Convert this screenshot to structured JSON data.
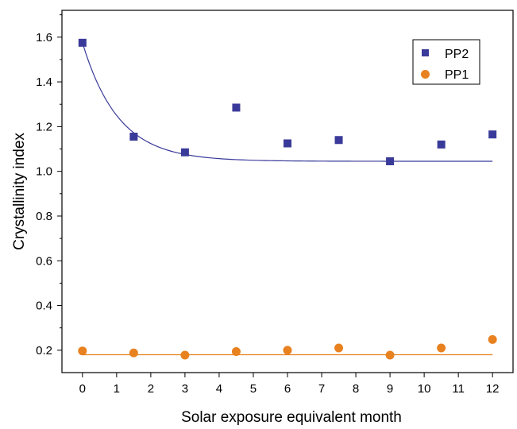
{
  "chart_data": {
    "type": "scatter",
    "title": "",
    "xlabel": "Solar exposure equivalent month",
    "ylabel": "Crystallinity index",
    "xlim": [
      -0.6,
      12.6
    ],
    "ylim": [
      0.1,
      1.72
    ],
    "xticks": [
      0,
      1,
      2,
      3,
      4,
      5,
      6,
      7,
      8,
      9,
      10,
      11,
      12
    ],
    "yticks": [
      0.2,
      0.4,
      0.6,
      0.8,
      1.0,
      1.2,
      1.4,
      1.6
    ],
    "ytick_labels": [
      "0.2",
      "0.4",
      "0.6",
      "0.8",
      "1.0",
      "1.2",
      "1.4",
      "1.6"
    ],
    "grid": false,
    "legend_position": "top-right",
    "series": [
      {
        "name": "PP2",
        "marker": "square",
        "color": "#3a3a9a",
        "x": [
          0,
          1.5,
          3,
          4.5,
          6,
          7.5,
          9,
          10.5,
          12
        ],
        "y": [
          1.575,
          1.155,
          1.085,
          1.285,
          1.125,
          1.14,
          1.045,
          1.12,
          1.165
        ],
        "fit": {
          "type": "exponential-decay",
          "color": "#3a3a9a",
          "start": 1.575,
          "plateau": 1.045,
          "rate": 0.95
        }
      },
      {
        "name": "PP1",
        "marker": "circle",
        "color": "#e8811f",
        "x": [
          0,
          1.5,
          3,
          4.5,
          6,
          7.5,
          9,
          10.5,
          12
        ],
        "y": [
          0.197,
          0.188,
          0.178,
          0.194,
          0.2,
          0.21,
          0.178,
          0.21,
          0.248
        ],
        "fit": {
          "type": "constant",
          "color": "#e8811f",
          "value": 0.18
        }
      }
    ]
  }
}
